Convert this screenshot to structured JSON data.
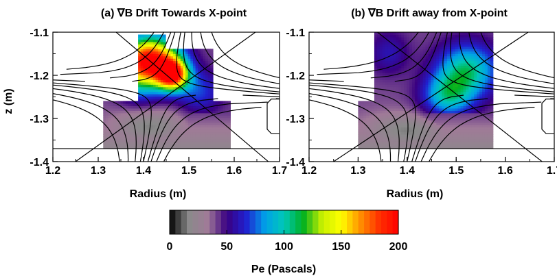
{
  "chart_data": [
    {
      "type": "heatmap",
      "title": "(a) ∇B Drift Towards X-point",
      "xlabel": "Radius (m)",
      "ylabel": "z (m)",
      "xlim": [
        1.2,
        1.7
      ],
      "ylim": [
        -1.4,
        -1.1
      ],
      "xticks": [
        "1.2",
        "1.3",
        "1.4",
        "1.5",
        "1.6",
        "1.7"
      ],
      "yticks": [
        "-1.1",
        "-1.2",
        "-1.3",
        "-1.4"
      ],
      "xpoint": [
        1.445,
        -1.23
      ],
      "divertor_z": -1.37,
      "blobs": [
        {
          "r": 1.46,
          "z": -1.2,
          "pe": 195,
          "sr": 0.035,
          "sz": 0.035
        },
        {
          "r": 1.42,
          "z": -1.16,
          "pe": 150,
          "sr": 0.06,
          "sz": 0.05
        },
        {
          "r": 1.39,
          "z": -1.19,
          "pe": 120,
          "sr": 0.05,
          "sz": 0.06
        },
        {
          "r": 1.52,
          "z": -1.24,
          "pe": 70,
          "sr": 0.05,
          "sz": 0.05
        },
        {
          "r": 1.41,
          "z": -1.32,
          "pe": 15,
          "sr": 0.08,
          "sz": 0.04
        }
      ]
    },
    {
      "type": "heatmap",
      "title": "(b) ∇B Drift away from X-point",
      "xlabel": "Radius (m)",
      "ylabel": "",
      "xlim": [
        1.2,
        1.7
      ],
      "ylim": [
        -1.4,
        -1.1
      ],
      "xticks": [
        "1.2",
        "1.3",
        "1.4",
        "1.5",
        "1.6",
        "1.7"
      ],
      "yticks": [
        "-1.1",
        "-1.2",
        "-1.3",
        "-1.4"
      ],
      "xpoint": [
        1.445,
        -1.23
      ],
      "divertor_z": -1.37,
      "blobs": [
        {
          "r": 1.52,
          "z": -1.19,
          "pe": 105,
          "sr": 0.06,
          "sz": 0.06
        },
        {
          "r": 1.48,
          "z": -1.25,
          "pe": 95,
          "sr": 0.05,
          "sz": 0.05
        },
        {
          "r": 1.36,
          "z": -1.15,
          "pe": 60,
          "sr": 0.04,
          "sz": 0.05
        },
        {
          "r": 1.4,
          "z": -1.33,
          "pe": 15,
          "sr": 0.09,
          "sz": 0.04
        }
      ]
    }
  ],
  "colorbar": {
    "label": "Pe (Pascals)",
    "ticks": [
      "0",
      "50",
      "100",
      "150",
      "200"
    ],
    "range": [
      0,
      200
    ],
    "stops": [
      "#000000",
      "#8a8a8a",
      "#a07a98",
      "#3a0080",
      "#2020d0",
      "#00a0e8",
      "#00c8b8",
      "#00b020",
      "#c8f000",
      "#ffff00",
      "#ff9000",
      "#ff3000",
      "#ff0000"
    ]
  }
}
